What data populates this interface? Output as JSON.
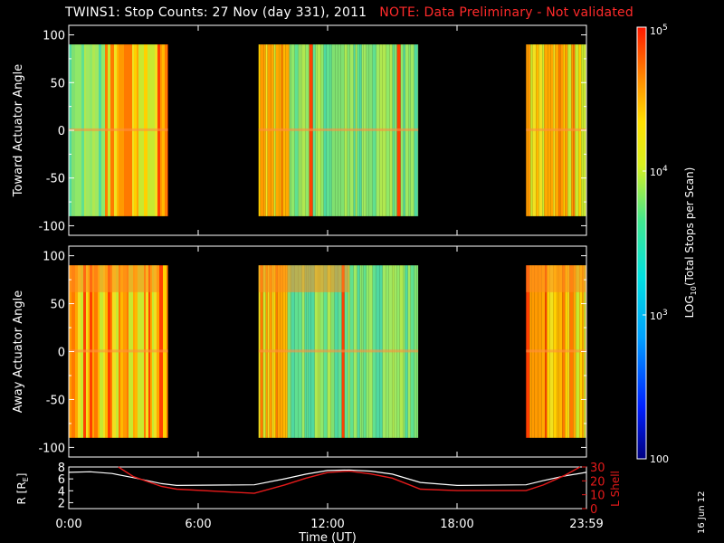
{
  "title": "TWINS1: Stop Counts: 27 Nov (day 331), 2011",
  "note": "NOTE: Data Preliminary - Not validated",
  "date_stamp": "16 Jun 12",
  "colors": {
    "background": "#000000",
    "axes": "#ffffff",
    "note": "#ff2a2a",
    "lshell": "#e51a1a",
    "rtrace": "#ffffff"
  },
  "chart_data": [
    {
      "type": "heatmap",
      "ylabel": "Toward Actuator Angle",
      "ylim": [
        -110,
        110
      ],
      "yticks": [
        100,
        50,
        0,
        -50,
        -100
      ],
      "xlim_hours": [
        0,
        24
      ],
      "angle_range": [
        -90,
        90
      ],
      "data_intervals_hours": [
        [
          0.0,
          4.6
        ],
        [
          8.8,
          16.2
        ],
        [
          21.2,
          24.0
        ]
      ],
      "colormap": "log10 counts, blue (10^2) to red (10^5)"
    },
    {
      "type": "heatmap",
      "ylabel": "Away Actuator Angle",
      "ylim": [
        -110,
        110
      ],
      "yticks": [
        100,
        50,
        0,
        -50,
        -100
      ],
      "xlim_hours": [
        0,
        24
      ],
      "angle_range": [
        -90,
        90
      ],
      "data_intervals_hours": [
        [
          0.0,
          4.6
        ],
        [
          8.8,
          16.2
        ],
        [
          21.2,
          24.0
        ]
      ],
      "colormap": "log10 counts, blue (10^2) to red (10^5)"
    },
    {
      "type": "line",
      "ylabel": "R [R_E]",
      "ylim": [
        1,
        8
      ],
      "yticks": [
        2,
        4,
        6,
        8
      ],
      "y2label": "L Shell",
      "y2lim": [
        0,
        30
      ],
      "y2ticks": [
        0,
        10,
        20,
        30
      ],
      "xlabel": "Time (UT)",
      "xticks": [
        "0:00",
        "6:00",
        "12:00",
        "18:00",
        "23:59"
      ],
      "xtick_hours": [
        0,
        6,
        12,
        18,
        24
      ],
      "series": [
        {
          "name": "R",
          "x": [
            0,
            1,
            2,
            3,
            4.3,
            5,
            8.6,
            10,
            11,
            12,
            13,
            14,
            15,
            16.3,
            18,
            21.2,
            22,
            23,
            24
          ],
          "y": [
            7.1,
            7.2,
            6.9,
            6.2,
            5.2,
            4.9,
            5.0,
            6.0,
            6.8,
            7.4,
            7.5,
            7.3,
            6.8,
            5.4,
            4.9,
            5.0,
            5.7,
            6.5,
            7.1
          ]
        },
        {
          "name": "L Shell",
          "x": [
            2.3,
            3,
            4.3,
            5,
            8.6,
            10,
            11,
            12,
            13,
            14,
            15,
            16.3,
            18,
            21.2,
            22,
            23,
            23.7
          ],
          "y": [
            30,
            23,
            16,
            14,
            11,
            17,
            22,
            26,
            27,
            25,
            22,
            14,
            13,
            13,
            17,
            24,
            30
          ]
        }
      ]
    },
    {
      "type": "colorbar",
      "label": "LOG10(Total Stops per Scan)",
      "ticks": [
        {
          "base": "10",
          "exp": "5",
          "value": 100000
        },
        {
          "base": "10",
          "exp": "4",
          "value": 10000
        },
        {
          "base": "10",
          "exp": "3",
          "value": 1000
        },
        {
          "base": "100",
          "exp": "",
          "value": 100
        }
      ]
    }
  ]
}
